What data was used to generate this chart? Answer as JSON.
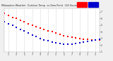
{
  "bg_color": "#f0f0f0",
  "plot_bg": "#ffffff",
  "grid_color": "#bbbbbb",
  "temp_color": "#ff0000",
  "dew_color": "#0000cc",
  "legend_temp_color": "#ff0000",
  "legend_dew_color": "#0000cc",
  "ylim": [
    10,
    75
  ],
  "xlim": [
    0,
    24
  ],
  "temp_x": [
    0,
    1,
    2,
    3,
    4,
    5,
    6,
    7,
    8,
    9,
    10,
    11,
    12,
    13,
    14,
    15,
    16,
    17,
    18,
    19,
    20,
    21,
    22,
    23,
    24
  ],
  "temp_y": [
    68,
    65,
    62,
    60,
    57,
    55,
    52,
    50,
    48,
    46,
    44,
    42,
    40,
    38,
    36,
    34,
    33,
    32,
    31,
    30,
    29,
    29,
    28,
    28,
    28
  ],
  "dew_x": [
    0,
    1,
    2,
    3,
    4,
    5,
    6,
    7,
    8,
    9,
    10,
    11,
    12,
    13,
    14,
    15,
    16,
    17,
    18,
    19,
    20,
    21,
    22,
    23,
    24
  ],
  "dew_y": [
    55,
    52,
    50,
    47,
    44,
    41,
    38,
    35,
    33,
    30,
    28,
    27,
    25,
    24,
    23,
    22,
    22,
    22,
    23,
    24,
    25,
    26,
    27,
    28,
    29
  ],
  "xtick_positions": [
    1,
    3,
    5,
    7,
    9,
    11,
    13,
    15,
    17,
    19,
    21,
    23
  ],
  "xtick_labels": [
    "1",
    "3",
    "5",
    "7",
    "9",
    "1",
    "3",
    "5",
    "7",
    "9",
    "1",
    "3"
  ],
  "ytick_vals": [
    10,
    20,
    30,
    40,
    50,
    60,
    70
  ],
  "ytick_labels": [
    "1",
    "2",
    "3",
    "4",
    "5",
    "6",
    "7"
  ]
}
